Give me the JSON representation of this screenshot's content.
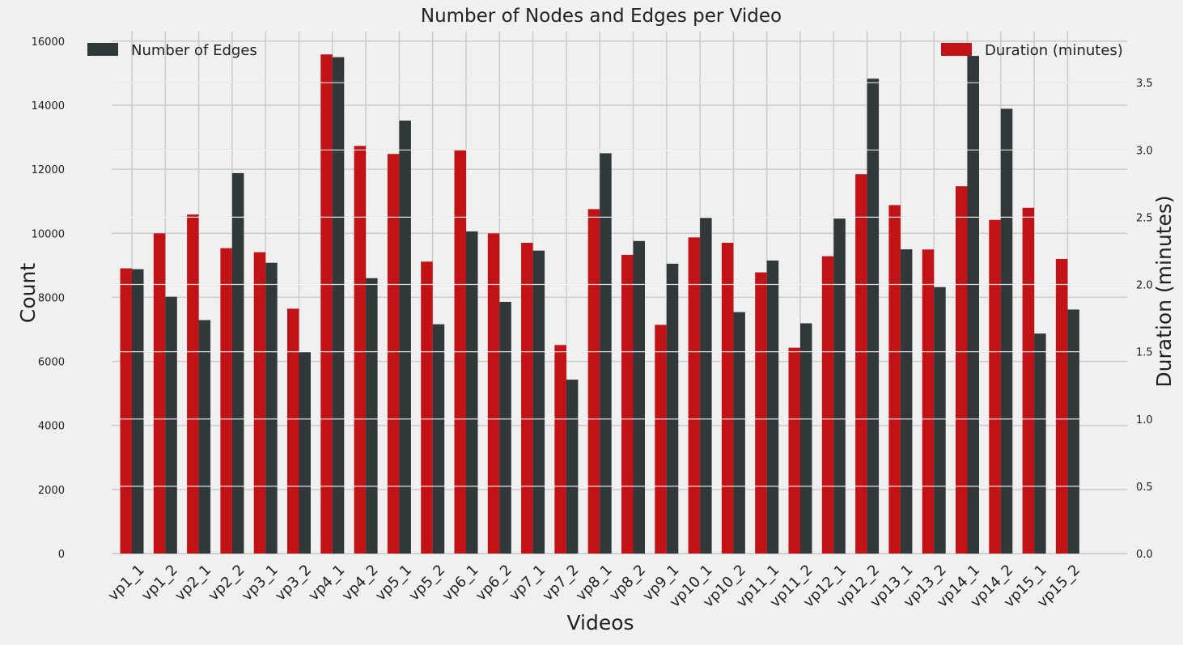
{
  "chart_data": {
    "type": "bar",
    "title": "Number of Nodes and Edges per Video",
    "xlabel": "Videos",
    "ylabel": "Count",
    "y2label": "Duration (minutes)",
    "categories": [
      "vp1_1",
      "vp1_2",
      "vp2_1",
      "vp2_2",
      "vp3_1",
      "vp3_2",
      "vp4_1",
      "vp4_2",
      "vp5_1",
      "vp5_2",
      "vp6_1",
      "vp6_2",
      "vp7_1",
      "vp7_2",
      "vp8_1",
      "vp8_2",
      "vp9_1",
      "vp10_1",
      "vp10_2",
      "vp11_1",
      "vp11_2",
      "vp12_1",
      "vp12_2",
      "vp13_1",
      "vp13_2",
      "vp14_1",
      "vp14_2",
      "vp15_1",
      "vp15_2"
    ],
    "series": [
      {
        "name": "Number of Edges",
        "axis": "left",
        "color": "#313839",
        "values": [
          8880,
          8020,
          7290,
          11880,
          9080,
          6290,
          15500,
          8600,
          13520,
          7160,
          10060,
          7860,
          9460,
          5430,
          12500,
          9760,
          9050,
          10480,
          7540,
          9150,
          7190,
          10460,
          14830,
          9500,
          8320,
          15540,
          13890,
          6870,
          7620
        ]
      },
      {
        "name": "Duration (minutes)",
        "axis": "right",
        "color": "#c11215",
        "values": [
          2.12,
          2.38,
          2.52,
          2.27,
          2.24,
          1.82,
          3.71,
          3.03,
          2.97,
          2.17,
          3.0,
          2.38,
          2.31,
          1.55,
          2.56,
          2.22,
          1.7,
          2.35,
          2.31,
          2.09,
          1.53,
          2.21,
          2.82,
          2.59,
          2.26,
          2.73,
          2.48,
          2.57,
          2.19
        ]
      }
    ],
    "ylim": [
      0,
      16300
    ],
    "y_ticks": [
      0,
      2000,
      4000,
      6000,
      8000,
      10000,
      12000,
      14000,
      16000
    ],
    "y2lim": [
      0,
      3.88
    ],
    "y2_ticks": [
      0.0,
      0.5,
      1.0,
      1.5,
      2.0,
      2.5,
      3.0,
      3.5
    ],
    "y2_tick_labels": [
      "0.0",
      "0.5",
      "1.0",
      "1.5",
      "2.0",
      "2.5",
      "3.0",
      "3.5"
    ],
    "grid": true,
    "legend_left": "top-left",
    "legend_right": "top-right"
  }
}
